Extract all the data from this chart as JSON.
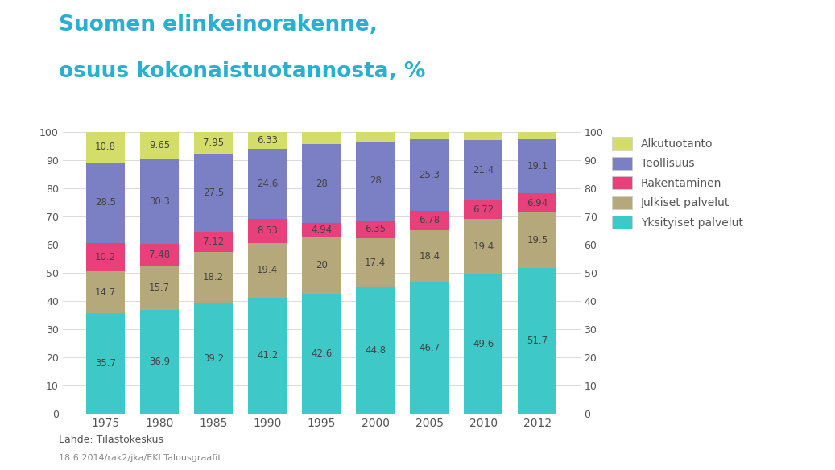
{
  "years": [
    "1975",
    "1980",
    "1985",
    "1990",
    "1995",
    "2000",
    "2005",
    "2010",
    "2012"
  ],
  "yksityiset_palvelut": [
    35.7,
    36.9,
    39.2,
    41.2,
    42.6,
    44.8,
    46.7,
    49.6,
    51.7
  ],
  "julkiset_palvelut": [
    14.7,
    15.7,
    18.2,
    19.4,
    20.0,
    17.4,
    18.4,
    19.4,
    19.5
  ],
  "rakentaminen": [
    10.2,
    7.48,
    7.12,
    8.53,
    4.94,
    6.35,
    6.78,
    6.72,
    6.94
  ],
  "teollisuus": [
    28.5,
    30.3,
    27.5,
    24.6,
    28.0,
    28.0,
    25.3,
    21.4,
    19.1
  ],
  "alkutuotanto": [
    10.8,
    9.65,
    7.95,
    6.33,
    4.46,
    3.45,
    2.82,
    2.88,
    2.76
  ],
  "label_alkutuotanto": [
    "10.8",
    "9.65",
    "7.95",
    "6.33",
    "",
    "",
    "",
    "",
    ""
  ],
  "colors": {
    "yksityiset_palvelut": "#3EC8C8",
    "julkiset_palvelut": "#B5A87A",
    "rakentaminen": "#E8407A",
    "teollisuus": "#7B7FC4",
    "alkutuotanto": "#D4DC6A"
  },
  "legend_labels": [
    "Alkutuotanto",
    "Teollisuus",
    "Rakentaminen",
    "Julkiset palvelut",
    "Yksityiset palvelut"
  ],
  "title_line1": "Suomen elinkeinorakenne,",
  "title_line2": "osuus kokonaistuotannosta, %",
  "title_color": "#29B0D0",
  "source_text": "Lähde: Tilastokeskus",
  "date_text": "18.6.2014/rak2/jka/EKI Talousgraafit",
  "ylim": [
    0,
    100
  ],
  "background_color": "#FFFFFF",
  "label_values": {
    "yksityiset_palvelut": [
      "35.7",
      "36.9",
      "39.2",
      "41.2",
      "42.6",
      "44.8",
      "46.7",
      "49.6",
      "51.7"
    ],
    "julkiset_palvelut": [
      "14.7",
      "15.7",
      "18.2",
      "19.4",
      "20",
      "17.4",
      "18.4",
      "19.4",
      "19.5"
    ],
    "rakentaminen": [
      "10.2",
      "7.48",
      "7.12",
      "8.53",
      "4.94",
      "6.35",
      "6.78",
      "6.72",
      "6.94"
    ],
    "teollisuus": [
      "28.5",
      "30.3",
      "27.5",
      "24.6",
      "28",
      "28",
      "25.3",
      "21.4",
      "19.1"
    ],
    "alkutuotanto": [
      "10.8",
      "9.65",
      "7.95",
      "6.33",
      "",
      "",
      "",
      "",
      ""
    ]
  }
}
